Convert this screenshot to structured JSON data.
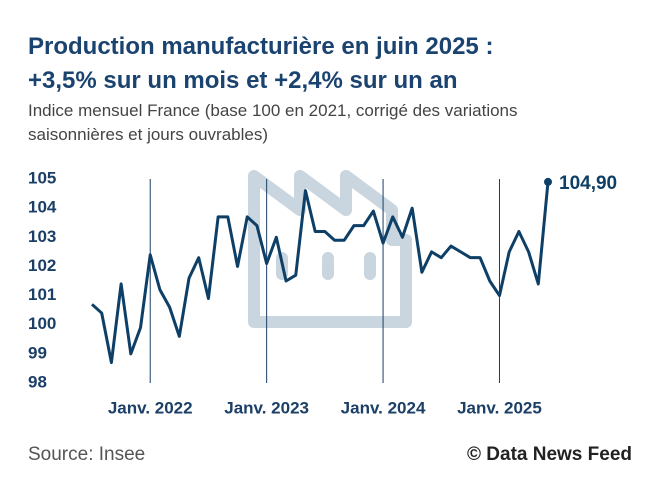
{
  "chart_data": {
    "type": "line",
    "title": [
      "Production manufacturière en juin 2025 :",
      "+3,5% sur un mois et +2,4% sur un an"
    ],
    "subtitle": "Indice mensuel France (base 100 en 2021, corrigé des variations saisonnières et jours ouvrables)",
    "source": "Source: Insee",
    "credit": "© Data News Feed",
    "categories": [
      null,
      null,
      null,
      null,
      null,
      null,
      "Janv. 2022",
      null,
      null,
      null,
      null,
      null,
      null,
      null,
      null,
      null,
      null,
      null,
      "Janv. 2023",
      null,
      null,
      null,
      null,
      null,
      null,
      null,
      null,
      null,
      null,
      null,
      "Janv. 2024",
      null,
      null,
      null,
      null,
      null,
      null,
      null,
      null,
      null,
      null,
      null,
      "Janv. 2025",
      null,
      null,
      null,
      null,
      null
    ],
    "series": [
      {
        "name": "Indice",
        "color": "#0e3f66",
        "values": [
          100.7,
          100.4,
          98.7,
          101.4,
          99.0,
          99.9,
          102.4,
          101.2,
          100.6,
          99.6,
          101.6,
          102.3,
          100.9,
          103.7,
          103.7,
          102.0,
          103.7,
          103.4,
          102.1,
          103.0,
          101.5,
          101.7,
          104.6,
          103.2,
          103.2,
          102.9,
          102.9,
          103.4,
          103.4,
          103.9,
          102.8,
          103.7,
          103.0,
          104.0,
          101.8,
          102.5,
          102.3,
          102.7,
          102.5,
          102.3,
          102.3,
          101.5,
          101.0,
          102.5,
          103.2,
          102.5,
          101.4,
          104.9
        ],
        "value_labels": [
          null,
          null,
          null,
          null,
          null,
          null,
          null,
          null,
          null,
          null,
          null,
          null,
          null,
          null,
          null,
          null,
          null,
          null,
          null,
          null,
          null,
          null,
          null,
          null,
          null,
          null,
          null,
          null,
          null,
          null,
          null,
          null,
          null,
          null,
          null,
          null,
          null,
          null,
          null,
          null,
          null,
          null,
          null,
          null,
          null,
          null,
          null,
          "104,90"
        ]
      }
    ],
    "ylim": [
      98,
      105
    ],
    "yticks": [
      98,
      99,
      100,
      101,
      102,
      103,
      104,
      105
    ],
    "grid": false
  }
}
